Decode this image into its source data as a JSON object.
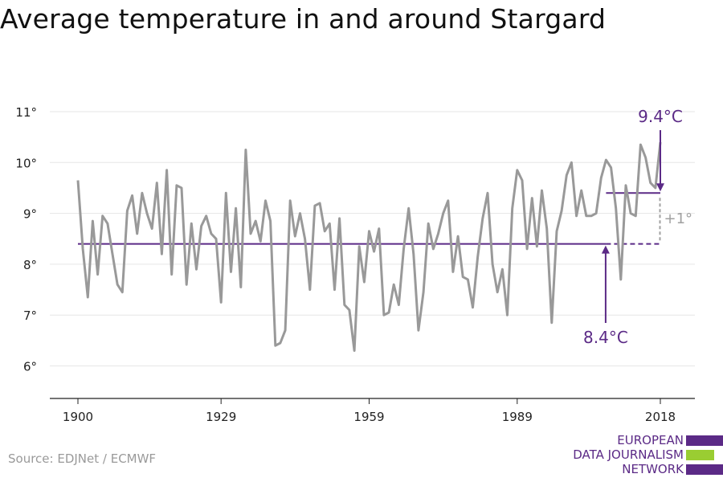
{
  "title": "Average temperature in and around Stargard",
  "source": "Source: EDJNet / ECMWF",
  "logo": {
    "lines": [
      "EUROPEAN",
      "DATA JOURNALISM",
      "NETWORK"
    ]
  },
  "colors": {
    "series": "#999999",
    "accent": "#5b2a86",
    "gray_annotation": "#a0a0a0",
    "logo_green": "#9acd32",
    "grid": "#e6e6e6"
  },
  "chart_data": {
    "type": "line",
    "ylim": [
      5.3,
      11.3
    ],
    "xlim": [
      1898,
      2021
    ],
    "yticks": [
      6,
      7,
      8,
      9,
      10,
      11
    ],
    "ytick_labels": [
      "6°",
      "7°",
      "8°",
      "9°",
      "10°",
      "11°"
    ],
    "xticks": [
      1900,
      1929,
      1959,
      1989,
      2018
    ],
    "xtick_labels": [
      "1900",
      "1929",
      "1959",
      "1989",
      "2018"
    ],
    "grid": true,
    "x": [
      1900,
      1901,
      1902,
      1903,
      1904,
      1905,
      1906,
      1907,
      1908,
      1909,
      1910,
      1911,
      1912,
      1913,
      1914,
      1915,
      1916,
      1917,
      1918,
      1919,
      1920,
      1921,
      1922,
      1923,
      1924,
      1925,
      1926,
      1927,
      1928,
      1929,
      1930,
      1931,
      1932,
      1933,
      1934,
      1935,
      1936,
      1937,
      1938,
      1939,
      1940,
      1941,
      1942,
      1943,
      1944,
      1945,
      1946,
      1947,
      1948,
      1949,
      1950,
      1951,
      1952,
      1953,
      1954,
      1955,
      1956,
      1957,
      1958,
      1959,
      1960,
      1961,
      1962,
      1963,
      1964,
      1965,
      1966,
      1967,
      1968,
      1969,
      1970,
      1971,
      1972,
      1973,
      1974,
      1975,
      1976,
      1977,
      1978,
      1979,
      1980,
      1981,
      1982,
      1983,
      1984,
      1985,
      1986,
      1987,
      1988,
      1989,
      1990,
      1991,
      1992,
      1993,
      1994,
      1995,
      1996,
      1997,
      1998,
      1999,
      2000,
      2001,
      2002,
      2003,
      2004,
      2005,
      2006,
      2007,
      2008,
      2009,
      2010,
      2011,
      2012,
      2013,
      2014,
      2015,
      2016,
      2017,
      2018
    ],
    "series": [
      {
        "values": [
          9.65,
          8.3,
          7.35,
          8.85,
          7.8,
          8.95,
          8.8,
          8.2,
          7.6,
          7.45,
          9.05,
          9.35,
          8.6,
          9.4,
          9.0,
          8.7,
          9.6,
          8.2,
          9.85,
          7.8,
          9.55,
          9.5,
          7.6,
          8.8,
          7.9,
          8.75,
          8.95,
          8.6,
          8.5,
          7.25,
          9.4,
          7.85,
          9.1,
          7.55,
          10.25,
          8.6,
          8.85,
          8.45,
          9.25,
          8.85,
          6.4,
          6.45,
          6.7,
          9.25,
          8.55,
          9.0,
          8.5,
          7.5,
          9.15,
          9.2,
          8.65,
          8.8,
          7.5,
          8.9,
          7.2,
          7.1,
          6.3,
          8.35,
          7.65,
          8.65,
          8.25,
          8.7,
          7.0,
          7.05,
          7.6,
          7.2,
          8.3,
          9.1,
          8.2,
          6.7,
          7.45,
          8.8,
          8.3,
          8.6,
          9.0,
          9.25,
          7.85,
          8.55,
          7.75,
          7.7,
          7.15,
          8.15,
          8.9,
          9.4,
          8.0,
          7.45,
          7.9,
          7.0,
          9.1,
          9.85,
          9.65,
          8.3,
          9.3,
          8.35,
          9.45,
          8.7,
          6.85,
          8.65,
          9.05,
          9.75,
          10.0,
          8.95,
          9.45,
          8.95,
          8.95,
          9.0,
          9.7,
          10.05,
          9.9,
          9.1,
          7.7,
          9.55,
          9.0,
          8.95,
          10.35,
          10.1,
          9.6,
          9.5,
          10.4
        ]
      }
    ],
    "baseline": {
      "value": 8.4,
      "x_start": 1900,
      "x_solid_end": 2007,
      "x_end": 2018,
      "label": "8.4°C"
    },
    "recent": {
      "value": 9.4,
      "x_start": 2007,
      "x_end": 2018,
      "label": "9.4°C"
    },
    "difference_label": "+1°"
  }
}
